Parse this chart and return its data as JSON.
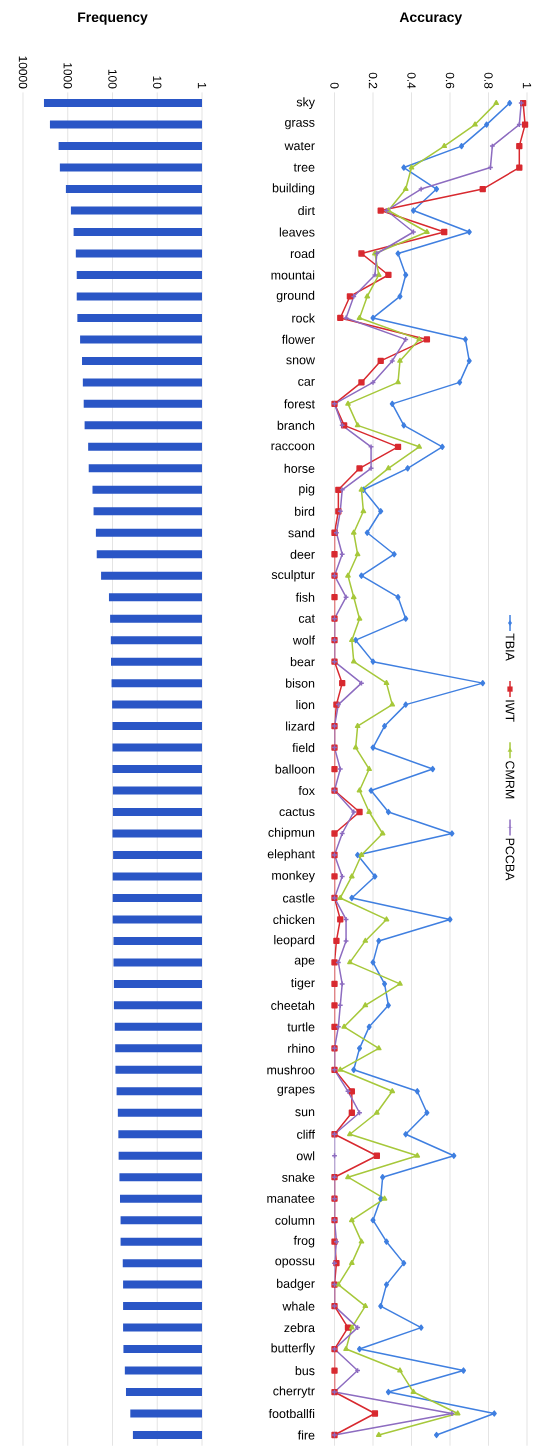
{
  "chart_data": [
    {
      "type": "bar",
      "title": "Frequency",
      "orientation": "horizontal",
      "log": "x",
      "tick_labels": "x",
      "grid": "x",
      "color": "#2a56c6",
      "categories": [
        null,
        null,
        null,
        null,
        null,
        null,
        null,
        null,
        null,
        null,
        null,
        null,
        null,
        null,
        null,
        null,
        null,
        null,
        null,
        null,
        null,
        null,
        null,
        null,
        null,
        null,
        null,
        null,
        null,
        null,
        null,
        null,
        null,
        null,
        null,
        null,
        null,
        null,
        null,
        null,
        null,
        null,
        null,
        null,
        null,
        null,
        null,
        null,
        null,
        null,
        null,
        null,
        null,
        null,
        null,
        null,
        null,
        null,
        null,
        null,
        null,
        null,
        null
      ],
      "values": [
        3400,
        2500,
        1600,
        1500,
        1100,
        850,
        740,
        660,
        630,
        630,
        610,
        530,
        480,
        460,
        440,
        420,
        350,
        340,
        280,
        265,
        235,
        225,
        180,
        120,
        113,
        109,
        108,
        105,
        102,
        100,
        100,
        100,
        98,
        98,
        100,
        97,
        99,
        99,
        99,
        95,
        95,
        93,
        93,
        89,
        87,
        86,
        81,
        76,
        74,
        73,
        70,
        68,
        66,
        66,
        59,
        58,
        58,
        58,
        57,
        53,
        50,
        40,
        35
      ],
      "xlim": [
        10000,
        1
      ],
      "xticks": [
        10000,
        1000,
        100,
        10,
        1
      ]
    },
    {
      "type": "line",
      "title": "Accuracy",
      "orientation": "horizontal",
      "grid": "x",
      "legend": "right",
      "line_style": "solid",
      "categories": [
        "sky",
        "grass",
        "water",
        "tree",
        "building",
        "dirt",
        "leaves",
        "road",
        "mountai",
        "ground",
        "rock",
        "flower",
        "snow",
        "car",
        "forest",
        "branch",
        "raccoon",
        "horse",
        "pig",
        "bird",
        "sand",
        "deer",
        "sculptur",
        "fish",
        "cat",
        "wolf",
        "bear",
        "bison",
        "lion",
        "lizard",
        "field",
        "balloon",
        "fox",
        "cactus",
        "chipmun",
        "elephant",
        "monkey",
        "castle",
        "chicken",
        "leopard",
        "ape",
        "tiger",
        "cheetah",
        "turtle",
        "rhino",
        "mushroo",
        "grapes",
        "sun",
        "cliff",
        "owl",
        "snake",
        "manatee",
        "column",
        "frog",
        "opossu",
        "badger",
        "whale",
        "zebra",
        "butterfly",
        "bus",
        "cherrytr",
        "footballfi",
        "fire"
      ],
      "xlim": [
        0,
        1
      ],
      "xticks": [
        0,
        0.2,
        0.4,
        0.6,
        0.8,
        1
      ],
      "series": [
        {
          "name": "TBIA",
          "color": "#3f7fe0",
          "marker": "diamond",
          "values": [
            0.91,
            0.79,
            0.66,
            0.36,
            0.53,
            0.41,
            0.7,
            0.33,
            0.37,
            0.34,
            0.2,
            0.68,
            0.7,
            0.65,
            0.3,
            0.36,
            0.56,
            0.38,
            0.15,
            0.24,
            0.17,
            0.31,
            0.14,
            0.33,
            0.37,
            0.11,
            0.2,
            0.77,
            0.37,
            0.26,
            0.2,
            0.51,
            0.19,
            0.28,
            0.61,
            0.12,
            0.21,
            0.09,
            0.6,
            0.23,
            0.2,
            0.26,
            0.28,
            0.18,
            0.13,
            0.1,
            0.43,
            0.48,
            0.37,
            0.62,
            0.25,
            0.24,
            0.2,
            0.27,
            0.36,
            0.27,
            0.24,
            0.45,
            0.13,
            0.67,
            0.28,
            0.83,
            0.53
          ]
        },
        {
          "name": "IWT",
          "color": "#d8292f",
          "marker": "square",
          "values": [
            0.98,
            0.99,
            0.96,
            0.96,
            0.77,
            0.24,
            0.57,
            0.14,
            0.28,
            0.08,
            0.03,
            0.48,
            0.24,
            0.14,
            0,
            0.05,
            0.33,
            0.13,
            0.02,
            0.02,
            0,
            0,
            0,
            0,
            0,
            0,
            0,
            0.04,
            0.01,
            0,
            0,
            0,
            0,
            0.13,
            0,
            0,
            0,
            0,
            0.03,
            0.01,
            0,
            0,
            0,
            0,
            0,
            0,
            0.09,
            0.09,
            0,
            0.22,
            0,
            0,
            0,
            0,
            0.01,
            0,
            0,
            0.07,
            0,
            0,
            0,
            0.21,
            0
          ]
        },
        {
          "name": "CMRM",
          "color": "#a6c83a",
          "marker": "triangle",
          "values": [
            0.84,
            0.73,
            0.57,
            0.4,
            0.37,
            0.28,
            0.48,
            0.21,
            0.23,
            0.17,
            0.13,
            0.44,
            0.34,
            0.33,
            0.07,
            0.12,
            0.44,
            0.28,
            0.14,
            0.15,
            0.1,
            0.12,
            0.07,
            0.1,
            0.13,
            0.09,
            0.1,
            0.27,
            0.3,
            0.12,
            0.11,
            0.18,
            0.13,
            0.18,
            0.25,
            0.14,
            0.09,
            0.03,
            0.27,
            0.16,
            0.08,
            0.34,
            0.16,
            0.05,
            0.23,
            0.03,
            0.3,
            0.22,
            0.08,
            0.43,
            0.07,
            0.26,
            0.09,
            0.14,
            0.09,
            0.02,
            0.16,
            0.09,
            0.06,
            0.34,
            0.41,
            0.64,
            0.23
          ]
        },
        {
          "name": "PCCBA",
          "color": "#8d6cc0",
          "marker": "cross",
          "values": [
            0.97,
            0.96,
            0.82,
            0.81,
            0.45,
            0.27,
            0.41,
            0.22,
            0.21,
            0.1,
            0.06,
            0.37,
            0.3,
            0.2,
            0,
            0.04,
            0.19,
            0.19,
            0.04,
            0.03,
            0.01,
            0.04,
            0,
            0.06,
            0,
            0,
            0,
            0.14,
            0.02,
            0,
            0,
            0.03,
            0,
            0.1,
            0.04,
            0,
            0.04,
            0,
            0.06,
            0.06,
            0.02,
            0.04,
            0.03,
            0.02,
            0,
            0,
            0.07,
            0.13,
            0,
            0,
            0,
            0,
            0,
            0.01,
            0,
            0,
            0,
            0.12,
            0,
            0.12,
            0,
            0.61,
            0
          ]
        }
      ]
    }
  ]
}
